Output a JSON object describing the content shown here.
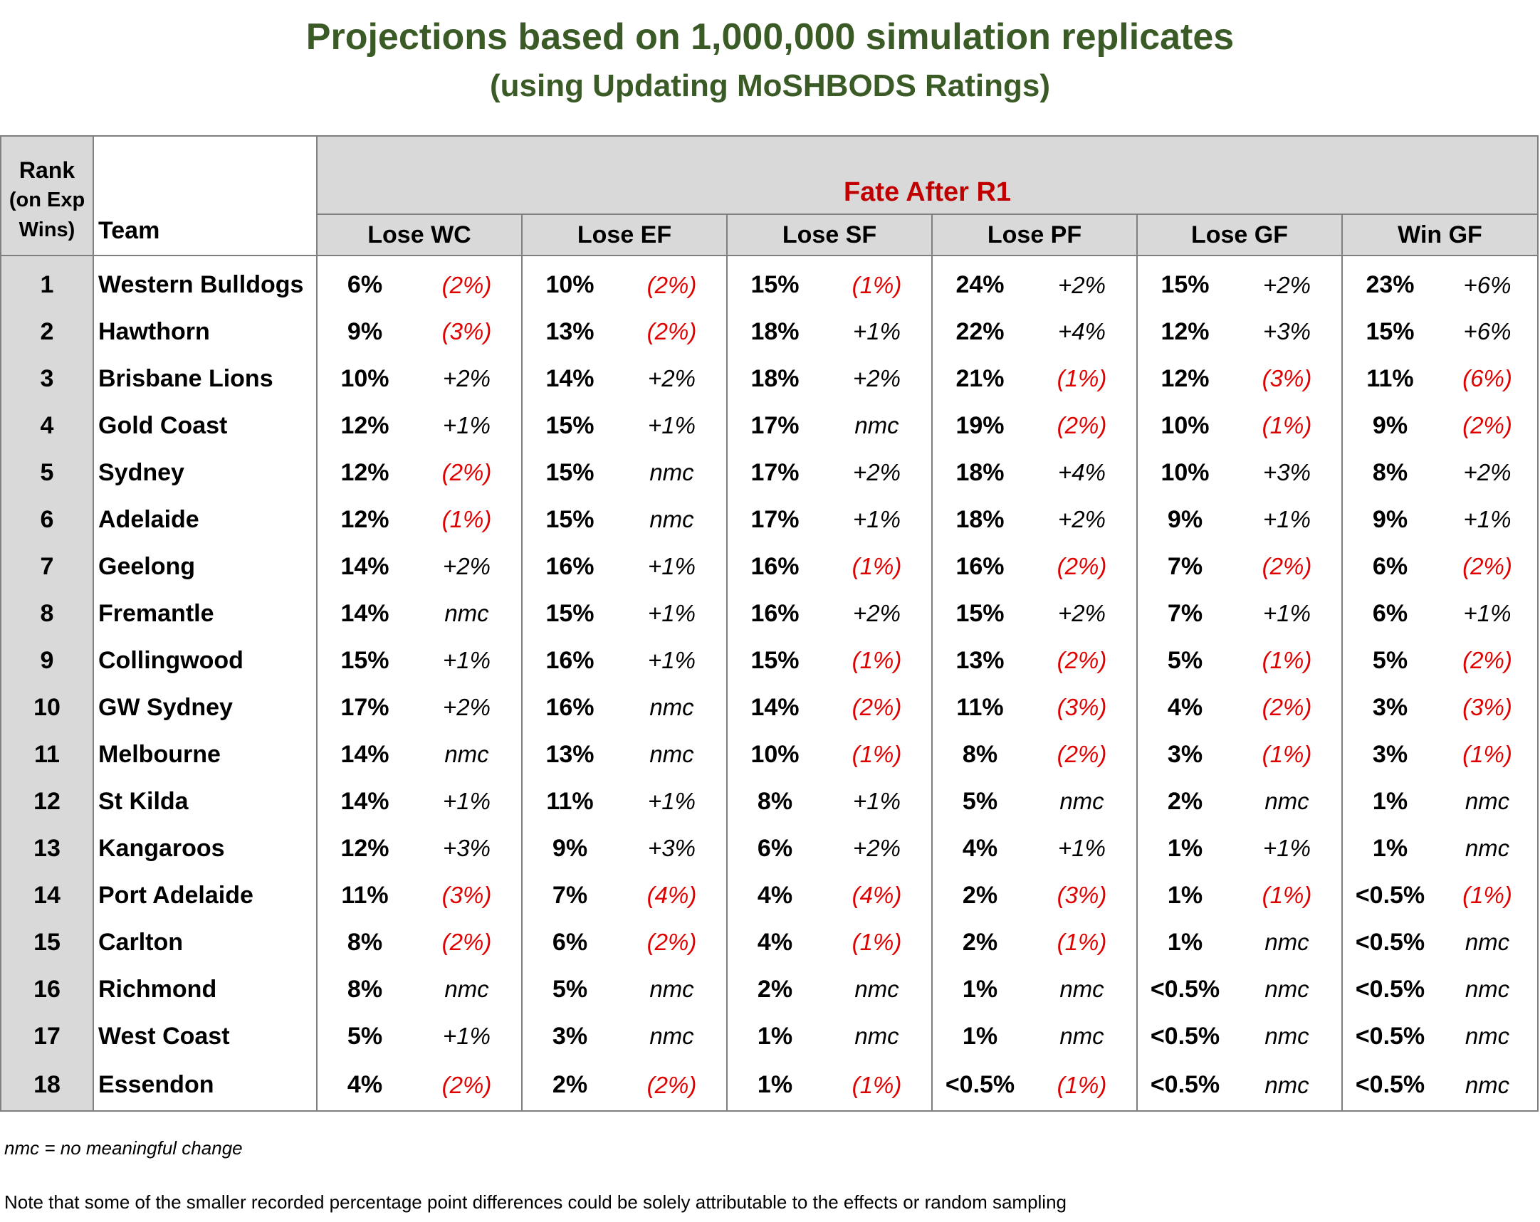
{
  "title": "Projections based on 1,000,000 simulation replicates",
  "subtitle": "(using Updating MoSHBODS Ratings)",
  "table": {
    "rank_header": [
      "Rank",
      "(on Exp",
      "Wins)"
    ],
    "team_header": "Team",
    "group_header": "Fate After R1",
    "columns": [
      "Lose WC",
      "Lose EF",
      "Lose SF",
      "Lose PF",
      "Lose GF",
      "Win GF"
    ],
    "rows": [
      {
        "rank": "1",
        "team": "Western Bulldogs",
        "cells": [
          [
            "6%",
            "(2%)"
          ],
          [
            "10%",
            "(2%)"
          ],
          [
            "15%",
            "(1%)"
          ],
          [
            "24%",
            "+2%"
          ],
          [
            "15%",
            "+2%"
          ],
          [
            "23%",
            "+6%"
          ]
        ]
      },
      {
        "rank": "2",
        "team": "Hawthorn",
        "cells": [
          [
            "9%",
            "(3%)"
          ],
          [
            "13%",
            "(2%)"
          ],
          [
            "18%",
            "+1%"
          ],
          [
            "22%",
            "+4%"
          ],
          [
            "12%",
            "+3%"
          ],
          [
            "15%",
            "+6%"
          ]
        ]
      },
      {
        "rank": "3",
        "team": "Brisbane Lions",
        "cells": [
          [
            "10%",
            "+2%"
          ],
          [
            "14%",
            "+2%"
          ],
          [
            "18%",
            "+2%"
          ],
          [
            "21%",
            "(1%)"
          ],
          [
            "12%",
            "(3%)"
          ],
          [
            "11%",
            "(6%)"
          ]
        ]
      },
      {
        "rank": "4",
        "team": "Gold Coast",
        "cells": [
          [
            "12%",
            "+1%"
          ],
          [
            "15%",
            "+1%"
          ],
          [
            "17%",
            "nmc"
          ],
          [
            "19%",
            "(2%)"
          ],
          [
            "10%",
            "(1%)"
          ],
          [
            "9%",
            "(2%)"
          ]
        ]
      },
      {
        "rank": "5",
        "team": "Sydney",
        "cells": [
          [
            "12%",
            "(2%)"
          ],
          [
            "15%",
            "nmc"
          ],
          [
            "17%",
            "+2%"
          ],
          [
            "18%",
            "+4%"
          ],
          [
            "10%",
            "+3%"
          ],
          [
            "8%",
            "+2%"
          ]
        ]
      },
      {
        "rank": "6",
        "team": "Adelaide",
        "cells": [
          [
            "12%",
            "(1%)"
          ],
          [
            "15%",
            "nmc"
          ],
          [
            "17%",
            "+1%"
          ],
          [
            "18%",
            "+2%"
          ],
          [
            "9%",
            "+1%"
          ],
          [
            "9%",
            "+1%"
          ]
        ]
      },
      {
        "rank": "7",
        "team": "Geelong",
        "cells": [
          [
            "14%",
            "+2%"
          ],
          [
            "16%",
            "+1%"
          ],
          [
            "16%",
            "(1%)"
          ],
          [
            "16%",
            "(2%)"
          ],
          [
            "7%",
            "(2%)"
          ],
          [
            "6%",
            "(2%)"
          ]
        ]
      },
      {
        "rank": "8",
        "team": "Fremantle",
        "cells": [
          [
            "14%",
            "nmc"
          ],
          [
            "15%",
            "+1%"
          ],
          [
            "16%",
            "+2%"
          ],
          [
            "15%",
            "+2%"
          ],
          [
            "7%",
            "+1%"
          ],
          [
            "6%",
            "+1%"
          ]
        ]
      },
      {
        "rank": "9",
        "team": "Collingwood",
        "cells": [
          [
            "15%",
            "+1%"
          ],
          [
            "16%",
            "+1%"
          ],
          [
            "15%",
            "(1%)"
          ],
          [
            "13%",
            "(2%)"
          ],
          [
            "5%",
            "(1%)"
          ],
          [
            "5%",
            "(2%)"
          ]
        ]
      },
      {
        "rank": "10",
        "team": "GW Sydney",
        "cells": [
          [
            "17%",
            "+2%"
          ],
          [
            "16%",
            "nmc"
          ],
          [
            "14%",
            "(2%)"
          ],
          [
            "11%",
            "(3%)"
          ],
          [
            "4%",
            "(2%)"
          ],
          [
            "3%",
            "(3%)"
          ]
        ]
      },
      {
        "rank": "11",
        "team": "Melbourne",
        "cells": [
          [
            "14%",
            "nmc"
          ],
          [
            "13%",
            "nmc"
          ],
          [
            "10%",
            "(1%)"
          ],
          [
            "8%",
            "(2%)"
          ],
          [
            "3%",
            "(1%)"
          ],
          [
            "3%",
            "(1%)"
          ]
        ]
      },
      {
        "rank": "12",
        "team": "St Kilda",
        "cells": [
          [
            "14%",
            "+1%"
          ],
          [
            "11%",
            "+1%"
          ],
          [
            "8%",
            "+1%"
          ],
          [
            "5%",
            "nmc"
          ],
          [
            "2%",
            "nmc"
          ],
          [
            "1%",
            "nmc"
          ]
        ]
      },
      {
        "rank": "13",
        "team": "Kangaroos",
        "cells": [
          [
            "12%",
            "+3%"
          ],
          [
            "9%",
            "+3%"
          ],
          [
            "6%",
            "+2%"
          ],
          [
            "4%",
            "+1%"
          ],
          [
            "1%",
            "+1%"
          ],
          [
            "1%",
            "nmc"
          ]
        ]
      },
      {
        "rank": "14",
        "team": "Port Adelaide",
        "cells": [
          [
            "11%",
            "(3%)"
          ],
          [
            "7%",
            "(4%)"
          ],
          [
            "4%",
            "(4%)"
          ],
          [
            "2%",
            "(3%)"
          ],
          [
            "1%",
            "(1%)"
          ],
          [
            "<0.5%",
            "(1%)"
          ]
        ]
      },
      {
        "rank": "15",
        "team": "Carlton",
        "cells": [
          [
            "8%",
            "(2%)"
          ],
          [
            "6%",
            "(2%)"
          ],
          [
            "4%",
            "(1%)"
          ],
          [
            "2%",
            "(1%)"
          ],
          [
            "1%",
            "nmc"
          ],
          [
            "<0.5%",
            "nmc"
          ]
        ]
      },
      {
        "rank": "16",
        "team": "Richmond",
        "cells": [
          [
            "8%",
            "nmc"
          ],
          [
            "5%",
            "nmc"
          ],
          [
            "2%",
            "nmc"
          ],
          [
            "1%",
            "nmc"
          ],
          [
            "<0.5%",
            "nmc"
          ],
          [
            "<0.5%",
            "nmc"
          ]
        ]
      },
      {
        "rank": "17",
        "team": "West Coast",
        "cells": [
          [
            "5%",
            "+1%"
          ],
          [
            "3%",
            "nmc"
          ],
          [
            "1%",
            "nmc"
          ],
          [
            "1%",
            "nmc"
          ],
          [
            "<0.5%",
            "nmc"
          ],
          [
            "<0.5%",
            "nmc"
          ]
        ]
      },
      {
        "rank": "18",
        "team": "Essendon",
        "cells": [
          [
            "4%",
            "(2%)"
          ],
          [
            "2%",
            "(2%)"
          ],
          [
            "1%",
            "(1%)"
          ],
          [
            "<0.5%",
            "(1%)"
          ],
          [
            "<0.5%",
            "nmc"
          ],
          [
            "<0.5%",
            "nmc"
          ]
        ]
      }
    ]
  },
  "notes": {
    "nmc": "nmc = no meaningful change",
    "sampling": "Note that some of the smaller recorded percentage point differences could be solely attributable to the effects or random sampling"
  },
  "colors": {
    "title": "#3a5a26",
    "group_header": "#c00000",
    "negative_change": "#e00000",
    "header_fill": "#d9d9d9",
    "border": "#7f7f7f"
  }
}
